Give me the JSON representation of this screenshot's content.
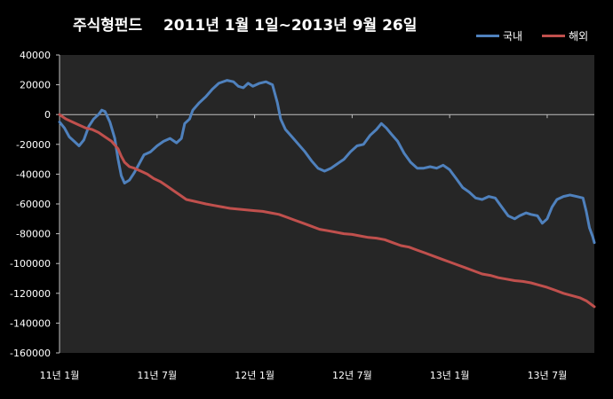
{
  "chart_data": {
    "type": "line",
    "title": "주식형펀드    2011년 1월 1일~2013년 9월 26일",
    "xlabel": "",
    "ylabel": "",
    "ylim": [
      -160000,
      40000
    ],
    "y_ticks": [
      "40000",
      "20000",
      "0",
      "-20000",
      "-40000",
      "-60000",
      "-80000",
      "-100000",
      "-120000",
      "-140000",
      "-160000"
    ],
    "x_ticks": [
      "11년 1월",
      "11년 7월",
      "12년 1월",
      "12년 7월",
      "13년 1월",
      "13년 7월"
    ],
    "x_tick_positions": [
      0,
      6,
      12,
      18,
      24,
      30
    ],
    "xlim": [
      0,
      32.9
    ],
    "grid": false,
    "legend_position": "top-right",
    "series": [
      {
        "name": "국내",
        "color": "#4F81BD",
        "points": [
          [
            0,
            -5000
          ],
          [
            0.3,
            -9000
          ],
          [
            0.6,
            -15000
          ],
          [
            0.9,
            -18000
          ],
          [
            1.2,
            -21000
          ],
          [
            1.5,
            -17000
          ],
          [
            1.8,
            -8000
          ],
          [
            2.1,
            -3000
          ],
          [
            2.4,
            0
          ],
          [
            2.6,
            3000
          ],
          [
            2.8,
            2000
          ],
          [
            3.1,
            -5000
          ],
          [
            3.4,
            -16000
          ],
          [
            3.6,
            -30000
          ],
          [
            3.8,
            -41000
          ],
          [
            4.0,
            -46000
          ],
          [
            4.3,
            -44000
          ],
          [
            4.6,
            -39000
          ],
          [
            4.9,
            -33000
          ],
          [
            5.2,
            -27000
          ],
          [
            5.6,
            -25000
          ],
          [
            6.0,
            -21000
          ],
          [
            6.4,
            -18000
          ],
          [
            6.8,
            -16000
          ],
          [
            7.2,
            -19000
          ],
          [
            7.5,
            -16000
          ],
          [
            7.7,
            -6000
          ],
          [
            8.0,
            -3000
          ],
          [
            8.2,
            3000
          ],
          [
            8.6,
            8000
          ],
          [
            9.0,
            12000
          ],
          [
            9.4,
            17000
          ],
          [
            9.8,
            21000
          ],
          [
            10.3,
            23000
          ],
          [
            10.7,
            22000
          ],
          [
            11.0,
            19000
          ],
          [
            11.3,
            18000
          ],
          [
            11.6,
            21000
          ],
          [
            11.9,
            19000
          ],
          [
            12.3,
            21000
          ],
          [
            12.7,
            22000
          ],
          [
            13.1,
            20000
          ],
          [
            13.4,
            8000
          ],
          [
            13.6,
            -3000
          ],
          [
            13.9,
            -10000
          ],
          [
            14.3,
            -15000
          ],
          [
            14.7,
            -20000
          ],
          [
            15.1,
            -25000
          ],
          [
            15.5,
            -31000
          ],
          [
            15.9,
            -36000
          ],
          [
            16.3,
            -38000
          ],
          [
            16.7,
            -36000
          ],
          [
            17.1,
            -33000
          ],
          [
            17.5,
            -30000
          ],
          [
            17.9,
            -25000
          ],
          [
            18.3,
            -21000
          ],
          [
            18.7,
            -20000
          ],
          [
            19.1,
            -14000
          ],
          [
            19.5,
            -10000
          ],
          [
            19.8,
            -6000
          ],
          [
            20.1,
            -9000
          ],
          [
            20.4,
            -13000
          ],
          [
            20.8,
            -18000
          ],
          [
            21.2,
            -26000
          ],
          [
            21.6,
            -32000
          ],
          [
            22.0,
            -36000
          ],
          [
            22.4,
            -36000
          ],
          [
            22.8,
            -35000
          ],
          [
            23.2,
            -36000
          ],
          [
            23.6,
            -34000
          ],
          [
            24.0,
            -37000
          ],
          [
            24.4,
            -43000
          ],
          [
            24.8,
            -49000
          ],
          [
            25.2,
            -52000
          ],
          [
            25.6,
            -56000
          ],
          [
            26.0,
            -57000
          ],
          [
            26.4,
            -55000
          ],
          [
            26.8,
            -56000
          ],
          [
            27.2,
            -62000
          ],
          [
            27.6,
            -68000
          ],
          [
            28.0,
            -70000
          ],
          [
            28.3,
            -68000
          ],
          [
            28.7,
            -66000
          ],
          [
            29.0,
            -67000
          ],
          [
            29.4,
            -68000
          ],
          [
            29.7,
            -73000
          ],
          [
            30.0,
            -70000
          ],
          [
            30.3,
            -62000
          ],
          [
            30.6,
            -57000
          ],
          [
            31.0,
            -55000
          ],
          [
            31.4,
            -54000
          ],
          [
            31.8,
            -55000
          ],
          [
            32.2,
            -56000
          ],
          [
            32.4,
            -65000
          ],
          [
            32.6,
            -76000
          ],
          [
            32.8,
            -82000
          ],
          [
            32.9,
            -86000
          ]
        ]
      },
      {
        "name": "해외",
        "color": "#C0504D",
        "points": [
          [
            0,
            0
          ],
          [
            0.4,
            -3000
          ],
          [
            0.8,
            -5000
          ],
          [
            1.2,
            -7000
          ],
          [
            1.6,
            -9000
          ],
          [
            2.0,
            -10000
          ],
          [
            2.4,
            -12000
          ],
          [
            2.8,
            -15000
          ],
          [
            3.2,
            -18000
          ],
          [
            3.6,
            -23000
          ],
          [
            3.8,
            -28000
          ],
          [
            4.0,
            -32000
          ],
          [
            4.3,
            -35000
          ],
          [
            4.6,
            -36000
          ],
          [
            5.0,
            -38000
          ],
          [
            5.4,
            -40000
          ],
          [
            5.8,
            -43000
          ],
          [
            6.2,
            -45000
          ],
          [
            6.6,
            -48000
          ],
          [
            7.0,
            -51000
          ],
          [
            7.4,
            -54000
          ],
          [
            7.8,
            -57000
          ],
          [
            8.2,
            -58000
          ],
          [
            8.6,
            -59000
          ],
          [
            9.0,
            -60000
          ],
          [
            9.5,
            -61000
          ],
          [
            10.0,
            -62000
          ],
          [
            10.5,
            -63000
          ],
          [
            11.0,
            -63500
          ],
          [
            11.5,
            -64000
          ],
          [
            12.0,
            -64500
          ],
          [
            12.5,
            -65000
          ],
          [
            13.0,
            -66000
          ],
          [
            13.5,
            -67000
          ],
          [
            14.0,
            -69000
          ],
          [
            14.5,
            -71000
          ],
          [
            15.0,
            -73000
          ],
          [
            15.5,
            -75000
          ],
          [
            16.0,
            -77000
          ],
          [
            16.5,
            -78000
          ],
          [
            17.0,
            -79000
          ],
          [
            17.5,
            -80000
          ],
          [
            18.0,
            -80500
          ],
          [
            18.5,
            -81500
          ],
          [
            19.0,
            -82500
          ],
          [
            19.5,
            -83000
          ],
          [
            20.0,
            -84000
          ],
          [
            20.5,
            -86000
          ],
          [
            21.0,
            -88000
          ],
          [
            21.5,
            -89000
          ],
          [
            22.0,
            -91000
          ],
          [
            22.5,
            -93000
          ],
          [
            23.0,
            -95000
          ],
          [
            23.5,
            -97000
          ],
          [
            24.0,
            -99000
          ],
          [
            24.5,
            -101000
          ],
          [
            25.0,
            -103000
          ],
          [
            25.5,
            -105000
          ],
          [
            26.0,
            -107000
          ],
          [
            26.5,
            -108000
          ],
          [
            27.0,
            -109500
          ],
          [
            27.5,
            -110500
          ],
          [
            28.0,
            -111500
          ],
          [
            28.5,
            -112000
          ],
          [
            29.0,
            -113000
          ],
          [
            29.5,
            -114500
          ],
          [
            30.0,
            -116000
          ],
          [
            30.5,
            -118000
          ],
          [
            31.0,
            -120000
          ],
          [
            31.5,
            -121500
          ],
          [
            32.0,
            -123000
          ],
          [
            32.4,
            -125000
          ],
          [
            32.9,
            -129000
          ]
        ]
      }
    ]
  },
  "legend": {
    "items": [
      "국내",
      "해외"
    ]
  }
}
